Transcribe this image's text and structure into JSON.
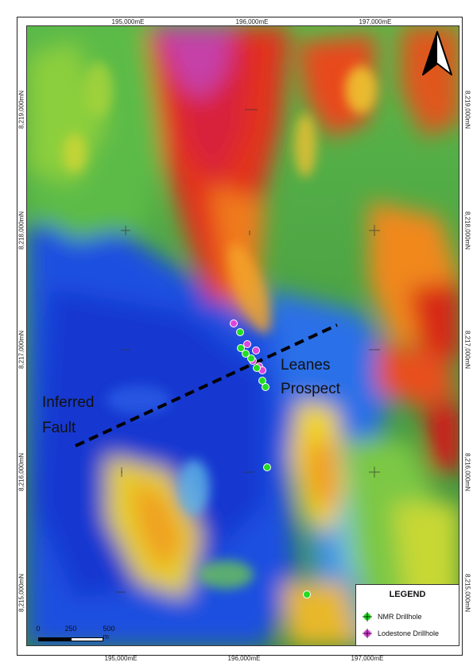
{
  "map": {
    "coords_top": [
      "195,000mE",
      "196,000mE",
      "197,000mE"
    ],
    "coords_bottom": [
      "195,000mE",
      "196,000mE",
      "197,000mE"
    ],
    "coords_left": [
      "8,219,000mN",
      "8,218,000mN",
      "8,217,000mN",
      "8,216,000mN",
      "8,215,000mN"
    ],
    "coords_right": [
      "8,219,000mN",
      "8,218,000mN",
      "8,217,000mN",
      "8,216,000mN",
      "8,215,000mN"
    ],
    "label_fault_line1": "Inferred",
    "label_fault_line2": "Fault",
    "label_prospect_line1": "Leanes",
    "label_prospect_line2": "Prospect"
  },
  "legend": {
    "title": "LEGEND",
    "items": [
      {
        "label": "NMR Drillhole",
        "color": "#22dd22",
        "icon": "green-crosshair-dot-icon"
      },
      {
        "label": "Lodestone Drillhole",
        "color": "#dd44dd",
        "icon": "magenta-crosshair-dot-icon"
      }
    ]
  },
  "scalebar": {
    "labels": [
      "0",
      "250",
      "500 m"
    ]
  },
  "colors": {
    "fault_line": "#000000",
    "nmr": "#22dd22",
    "lodestone": "#dd44dd"
  }
}
